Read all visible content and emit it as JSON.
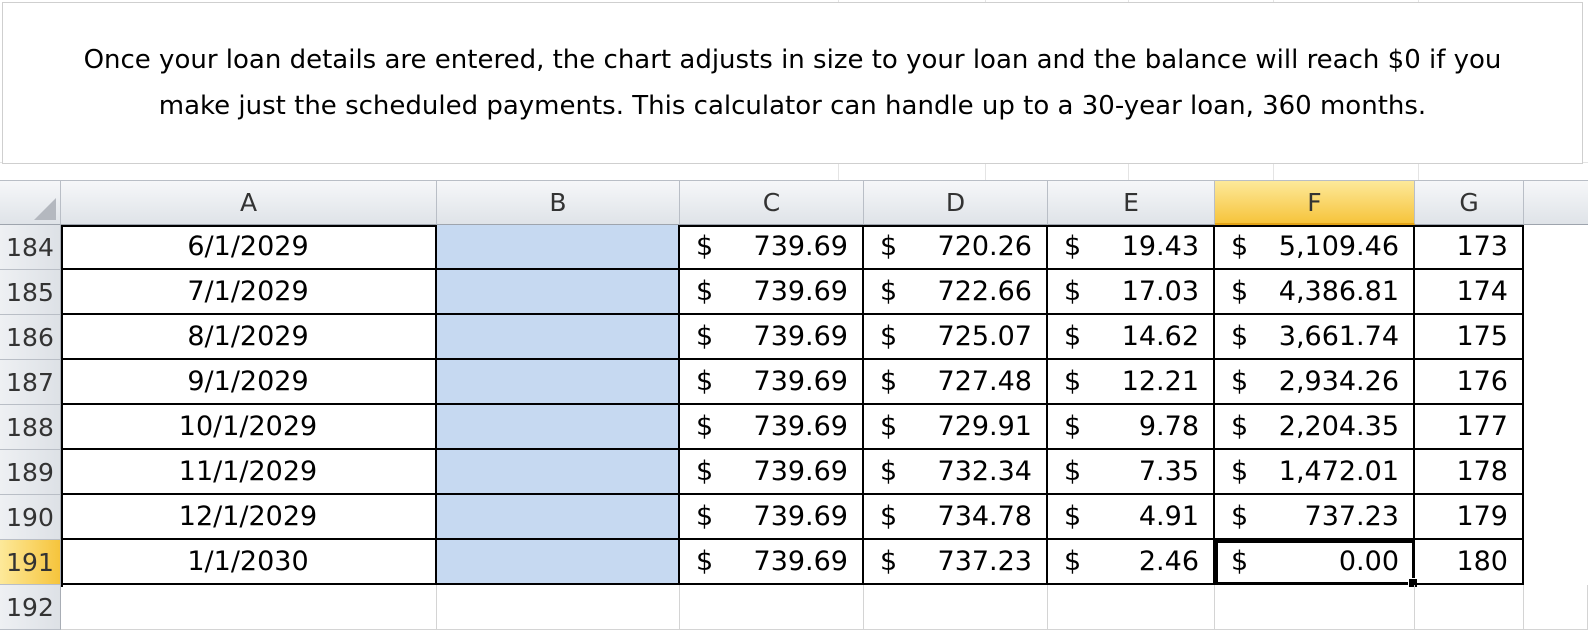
{
  "note": {
    "line1": "Once your loan details are entered, the chart adjusts in size to your loan and the balance will reach $0 if you",
    "line2": "make just the scheduled payments. This calculator can handle up to a 30-year loan, 360 months."
  },
  "columns": [
    "A",
    "B",
    "C",
    "D",
    "E",
    "F",
    "G"
  ],
  "selected_column": "F",
  "selected_row": "191",
  "currency_symbol": "$",
  "rows": [
    {
      "num": "184",
      "date": "6/1/2029",
      "c": "739.69",
      "d": "720.26",
      "e": "19.43",
      "f": "5,109.46",
      "g": "173"
    },
    {
      "num": "185",
      "date": "7/1/2029",
      "c": "739.69",
      "d": "722.66",
      "e": "17.03",
      "f": "4,386.81",
      "g": "174"
    },
    {
      "num": "186",
      "date": "8/1/2029",
      "c": "739.69",
      "d": "725.07",
      "e": "14.62",
      "f": "3,661.74",
      "g": "175"
    },
    {
      "num": "187",
      "date": "9/1/2029",
      "c": "739.69",
      "d": "727.48",
      "e": "12.21",
      "f": "2,934.26",
      "g": "176"
    },
    {
      "num": "188",
      "date": "10/1/2029",
      "c": "739.69",
      "d": "729.91",
      "e": "9.78",
      "f": "2,204.35",
      "g": "177"
    },
    {
      "num": "189",
      "date": "11/1/2029",
      "c": "739.69",
      "d": "732.34",
      "e": "7.35",
      "f": "1,472.01",
      "g": "178"
    },
    {
      "num": "190",
      "date": "12/1/2029",
      "c": "739.69",
      "d": "734.78",
      "e": "4.91",
      "f": "737.23",
      "g": "179"
    },
    {
      "num": "191",
      "date": "1/1/2030",
      "c": "739.69",
      "d": "737.23",
      "e": "2.46",
      "f": "0.00",
      "g": "180"
    }
  ],
  "empty_row": {
    "num": "192"
  },
  "colors": {
    "header_selected": "#f6c43c",
    "column_b_fill": "#c6d9f1"
  }
}
